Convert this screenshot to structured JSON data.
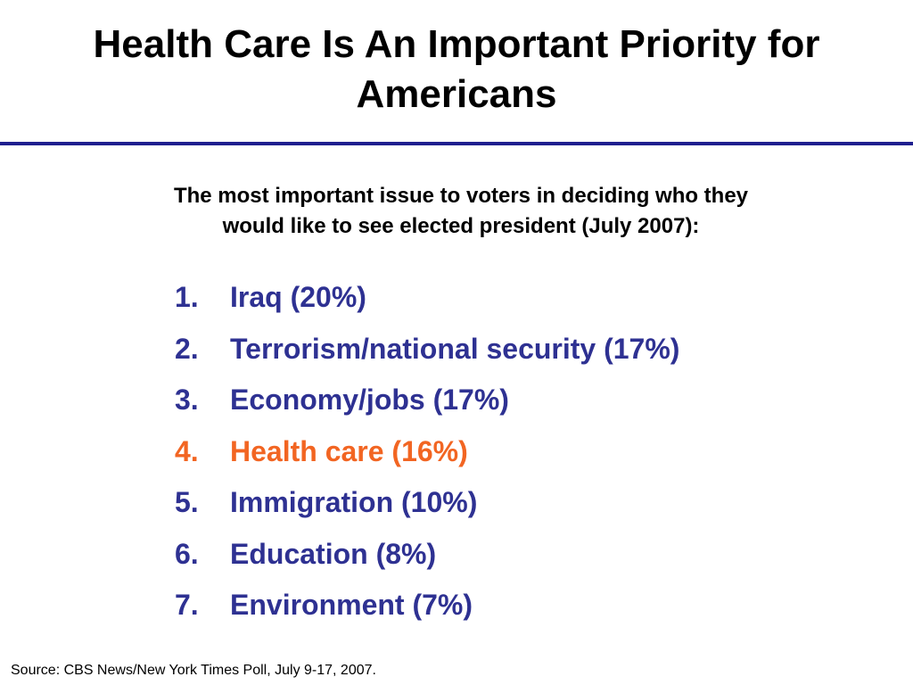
{
  "slide": {
    "title_line1": "Health Care Is An Important Priority for",
    "title_line2": "Americans",
    "subtitle_line1": "The most important issue to voters in deciding who they",
    "subtitle_line2": "would like to see elected president (July 2007):",
    "source": "Source: CBS News/New York Times Poll, July 9-17, 2007."
  },
  "colors": {
    "list_text": "#2e3192",
    "highlight": "#f26522",
    "rule": "#1f1f8f"
  },
  "issues": [
    {
      "number": "1.",
      "label": "Iraq (20%)",
      "highlight": false
    },
    {
      "number": "2.",
      "label": "Terrorism/national security (17%)",
      "highlight": false
    },
    {
      "number": "3.",
      "label": "Economy/jobs (17%)",
      "highlight": false
    },
    {
      "number": "4.",
      "label": "Health care (16%)",
      "highlight": true
    },
    {
      "number": "5.",
      "label": "Immigration (10%)",
      "highlight": false
    },
    {
      "number": "6.",
      "label": "Education (8%)",
      "highlight": false
    },
    {
      "number": "7.",
      "label": "Environment (7%)",
      "highlight": false
    }
  ]
}
